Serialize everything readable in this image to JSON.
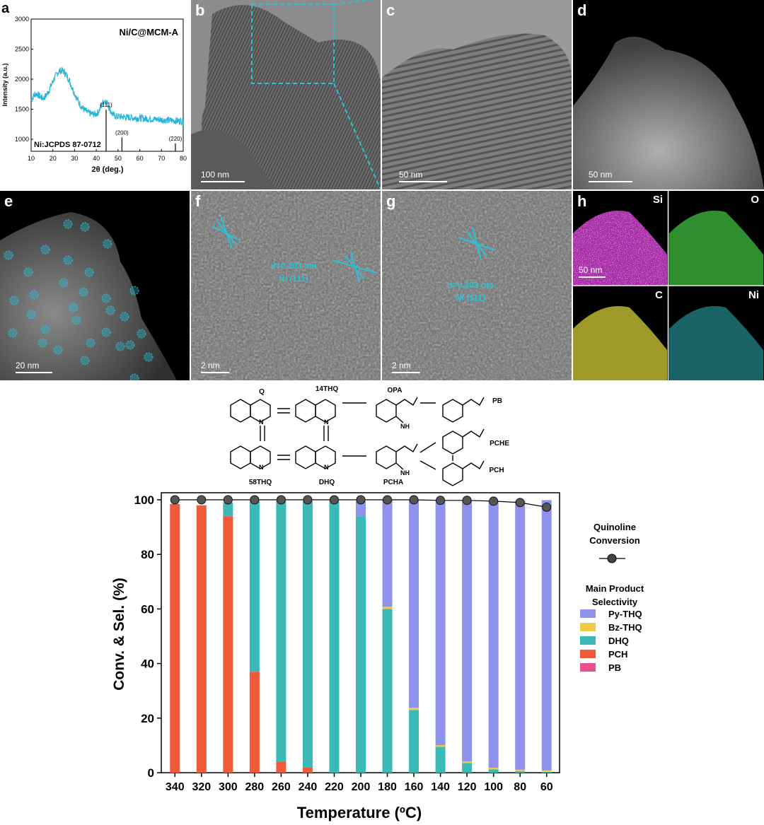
{
  "panels": {
    "a": {
      "label": "a",
      "sample": "Ni/C@MCM-A",
      "reference": "Ni:JCPDS 87-0712",
      "ylabel": "Intensity (a.u.)",
      "xlabel": "2θ (deg.)",
      "xticks": [
        "10",
        "20",
        "30",
        "40",
        "50",
        "60",
        "70",
        "80"
      ],
      "yticks": [
        "1000",
        "1500",
        "2000",
        "2500",
        "3000"
      ],
      "peaks": [
        {
          "pos": 44.5,
          "label": "(111)"
        },
        {
          "pos": 51.8,
          "label": "(200)"
        },
        {
          "pos": 76.4,
          "label": "(220)"
        }
      ]
    },
    "b": {
      "label": "b",
      "scale": "100 nm"
    },
    "c": {
      "label": "c",
      "scale": "50 nm"
    },
    "d": {
      "label": "d",
      "scale": "50 nm"
    },
    "e": {
      "label": "e",
      "scale": "20 nm"
    },
    "f": {
      "label": "f",
      "scale": "2 nm",
      "d_spacing": "d=0.203 nm",
      "plane": "Ni (111)"
    },
    "g": {
      "label": "g",
      "scale": "2 nm",
      "d_spacing": "d=0.203 nm",
      "plane": "Ni (111)"
    },
    "h": {
      "label": "h",
      "scale": "50 nm",
      "elements": [
        "Si",
        "O",
        "C",
        "Ni"
      ]
    }
  },
  "scheme": {
    "molecules": [
      "Q",
      "14THQ",
      "OPA",
      "PB",
      "58THQ",
      "DHQ",
      "PCHA",
      "PCHE",
      "PCH"
    ]
  },
  "colors": {
    "Py-THQ": "#8f93ee",
    "Bz-THQ": "#f0c84a",
    "DHQ": "#3bb9b7",
    "PCH": "#ef5b3a",
    "PB": "#e8508e"
  },
  "chart_data": {
    "type": "bar",
    "ylabel": "Conv. & Sel. (%)",
    "xlabel": "Temperature (ºC)",
    "ylim": [
      0,
      100
    ],
    "yticks": [
      0,
      20,
      40,
      60,
      80,
      100
    ],
    "categories": [
      "340",
      "320",
      "300",
      "280",
      "260",
      "240",
      "220",
      "200",
      "180",
      "160",
      "140",
      "120",
      "100",
      "80",
      "60"
    ],
    "series": [
      {
        "name": "PCH",
        "values": [
          98.5,
          98,
          94,
          37,
          4,
          2,
          0,
          0,
          0,
          0,
          0,
          0,
          0,
          0,
          0
        ]
      },
      {
        "name": "DHQ",
        "values": [
          0,
          0,
          5,
          62.5,
          95.5,
          97.5,
          99.5,
          94,
          60,
          23,
          9.5,
          3.5,
          1.2,
          0.5,
          0.3
        ]
      },
      {
        "name": "Bz-THQ",
        "values": [
          0,
          0,
          0,
          0,
          0,
          0,
          0,
          0,
          0.8,
          0.8,
          0.6,
          0.6,
          0.6,
          0.6,
          0.6
        ]
      },
      {
        "name": "Py-THQ",
        "values": [
          0,
          0,
          0,
          0,
          0,
          0,
          0,
          5.5,
          39.2,
          76,
          89.5,
          95.5,
          97.8,
          98.5,
          99
        ]
      }
    ],
    "conversion": {
      "name": "Quinoline Conversion",
      "values": [
        100,
        100,
        100,
        100,
        100,
        100,
        100,
        100,
        100,
        100,
        99.8,
        99.8,
        99.5,
        99,
        97.3
      ]
    },
    "legend": {
      "conversion_title": "Quinoline Conversion",
      "selectivity_title": "Main Product Selectivity",
      "entries": [
        "Py-THQ",
        "Bz-THQ",
        "DHQ",
        "PCH",
        "PB"
      ],
      "placement": "right"
    }
  }
}
